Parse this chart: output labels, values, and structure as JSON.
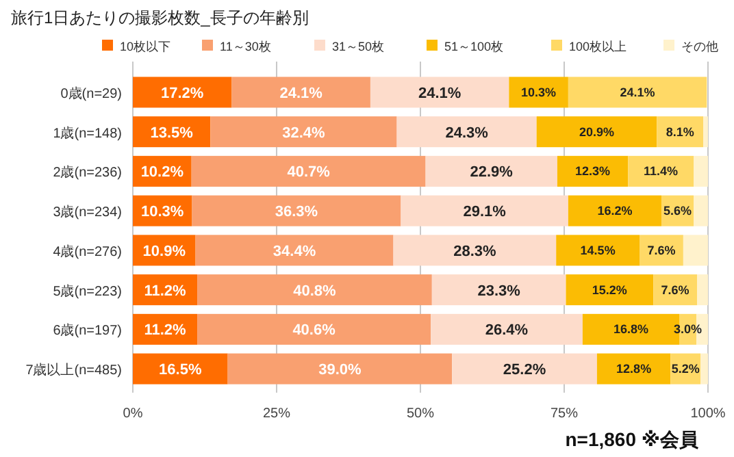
{
  "chart_data": {
    "type": "bar",
    "orientation": "horizontal",
    "stacked": true,
    "title": "旅行1日あたりの撮影枚数_長子の年齢別",
    "categories": [
      "0歳(n=29)",
      "1歳(n=148)",
      "2歳(n=236)",
      "3歳(n=234)",
      "4歳(n=276)",
      "5歳(n=223)",
      "6歳(n=197)",
      "7歳以上(n=485)"
    ],
    "series": [
      {
        "name": "10枚以下",
        "color": "#ff6d01",
        "values": [
          17.2,
          13.5,
          10.2,
          10.3,
          10.9,
          11.2,
          11.2,
          16.5
        ],
        "value_labels": [
          "17.2%",
          "13.5%",
          "10.2%",
          "10.3%",
          "10.9%",
          "11.2%",
          "11.2%",
          "16.5%"
        ]
      },
      {
        "name": "11～30枚",
        "color": "#f9a070",
        "values": [
          24.1,
          32.4,
          40.7,
          36.3,
          34.4,
          40.8,
          40.6,
          39.0
        ],
        "value_labels": [
          "24.1%",
          "32.4%",
          "40.7%",
          "36.3%",
          "34.4%",
          "40.8%",
          "40.6%",
          "39.0%"
        ]
      },
      {
        "name": "31～50枚",
        "color": "#fddccb",
        "values": [
          24.1,
          24.3,
          22.9,
          29.1,
          28.3,
          23.3,
          26.4,
          25.2
        ],
        "value_labels": [
          "24.1%",
          "24.3%",
          "22.9%",
          "29.1%",
          "28.3%",
          "23.3%",
          "26.4%",
          "25.2%"
        ]
      },
      {
        "name": "51～100枚",
        "color": "#fbbc04",
        "values": [
          10.3,
          20.9,
          12.3,
          16.2,
          14.5,
          15.2,
          16.8,
          12.8
        ],
        "value_labels": [
          "10.3%",
          "20.9%",
          "12.3%",
          "16.2%",
          "14.5%",
          "15.2%",
          "16.8%",
          "12.8%"
        ]
      },
      {
        "name": "100枚以上",
        "color": "#ffd966",
        "values": [
          24.1,
          8.1,
          11.4,
          5.6,
          7.6,
          7.6,
          3.0,
          5.2
        ],
        "value_labels": [
          "24.1%",
          "8.1%",
          "11.4%",
          "5.6%",
          "7.6%",
          "7.6%",
          "3.0%",
          "5.2%"
        ]
      },
      {
        "name": "その他",
        "color": "#fff2cc",
        "values": [
          null,
          0.8,
          2.5,
          2.5,
          4.3,
          1.9,
          2.0,
          1.3
        ]
      }
    ],
    "xlim": [
      0,
      100
    ],
    "xticks": [
      {
        "value": 0,
        "label": "0%"
      },
      {
        "value": 25,
        "label": "25%"
      },
      {
        "value": 50,
        "label": "50%"
      },
      {
        "value": 75,
        "label": "75%"
      },
      {
        "value": 100,
        "label": "100%"
      }
    ],
    "grid": "x",
    "legend": "top",
    "annotations": [
      "n=1,860 ※会員"
    ]
  }
}
